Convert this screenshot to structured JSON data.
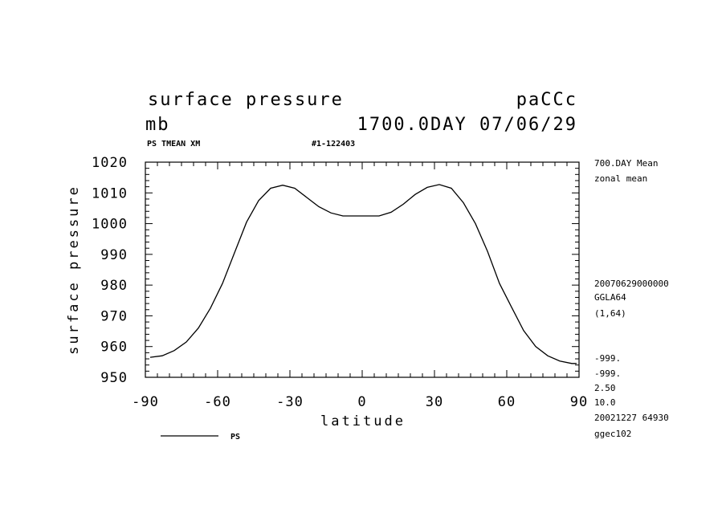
{
  "header": {
    "title": "surface pressure",
    "run_id": "paCCc",
    "unit": "mb",
    "time_label": "1700.0DAY 07/06/29",
    "var_label": "PS TMEAN XM",
    "file_label": "#1-122403"
  },
  "side_info": {
    "mean_label": "700.DAY Mean",
    "zonal_label": "zonal mean",
    "date_code": "20070629000000",
    "grid": "GGLA64",
    "index": "(1,64)",
    "missing_1": "-999.",
    "missing_2": "-999.",
    "interval": "2.50",
    "scale": "10.0",
    "creation": "20021227  64930",
    "host": "ggec102"
  },
  "legend": {
    "entries": [
      "PS"
    ]
  },
  "chart_data": {
    "type": "line",
    "xlabel": "latitude",
    "ylabel": "surface pressure",
    "xlim": [
      -90,
      90
    ],
    "ylim": [
      950,
      1020
    ],
    "xticks": [
      -90,
      -60,
      -30,
      0,
      30,
      60,
      90
    ],
    "yticks": [
      950,
      960,
      970,
      980,
      990,
      1000,
      1010,
      1020
    ],
    "grid": false,
    "legend_position": "bottom-left",
    "series": [
      {
        "name": "PS",
        "x": [
          -88,
          -83,
          -78,
          -73,
          -68,
          -63,
          -58,
          -53,
          -48,
          -43,
          -38,
          -33,
          -28,
          -23,
          -18,
          -13,
          -8,
          -3,
          2,
          7,
          12,
          17,
          22,
          27,
          32,
          37,
          42,
          47,
          52,
          57,
          62,
          67,
          72,
          77,
          82,
          87,
          89
        ],
        "values": [
          956.5,
          957,
          958.7,
          961.5,
          966,
          972.5,
          980.5,
          990.5,
          1000.5,
          1007.5,
          1011.5,
          1012.5,
          1011.5,
          1008.5,
          1005.5,
          1003.5,
          1002.5,
          1002.5,
          1002.5,
          1002.5,
          1003.7,
          1006.3,
          1009.5,
          1011.8,
          1012.7,
          1011.5,
          1006.8,
          1000,
          991,
          980.5,
          972.8,
          965.2,
          960,
          957,
          955.3,
          954.5,
          954.5
        ]
      }
    ]
  }
}
